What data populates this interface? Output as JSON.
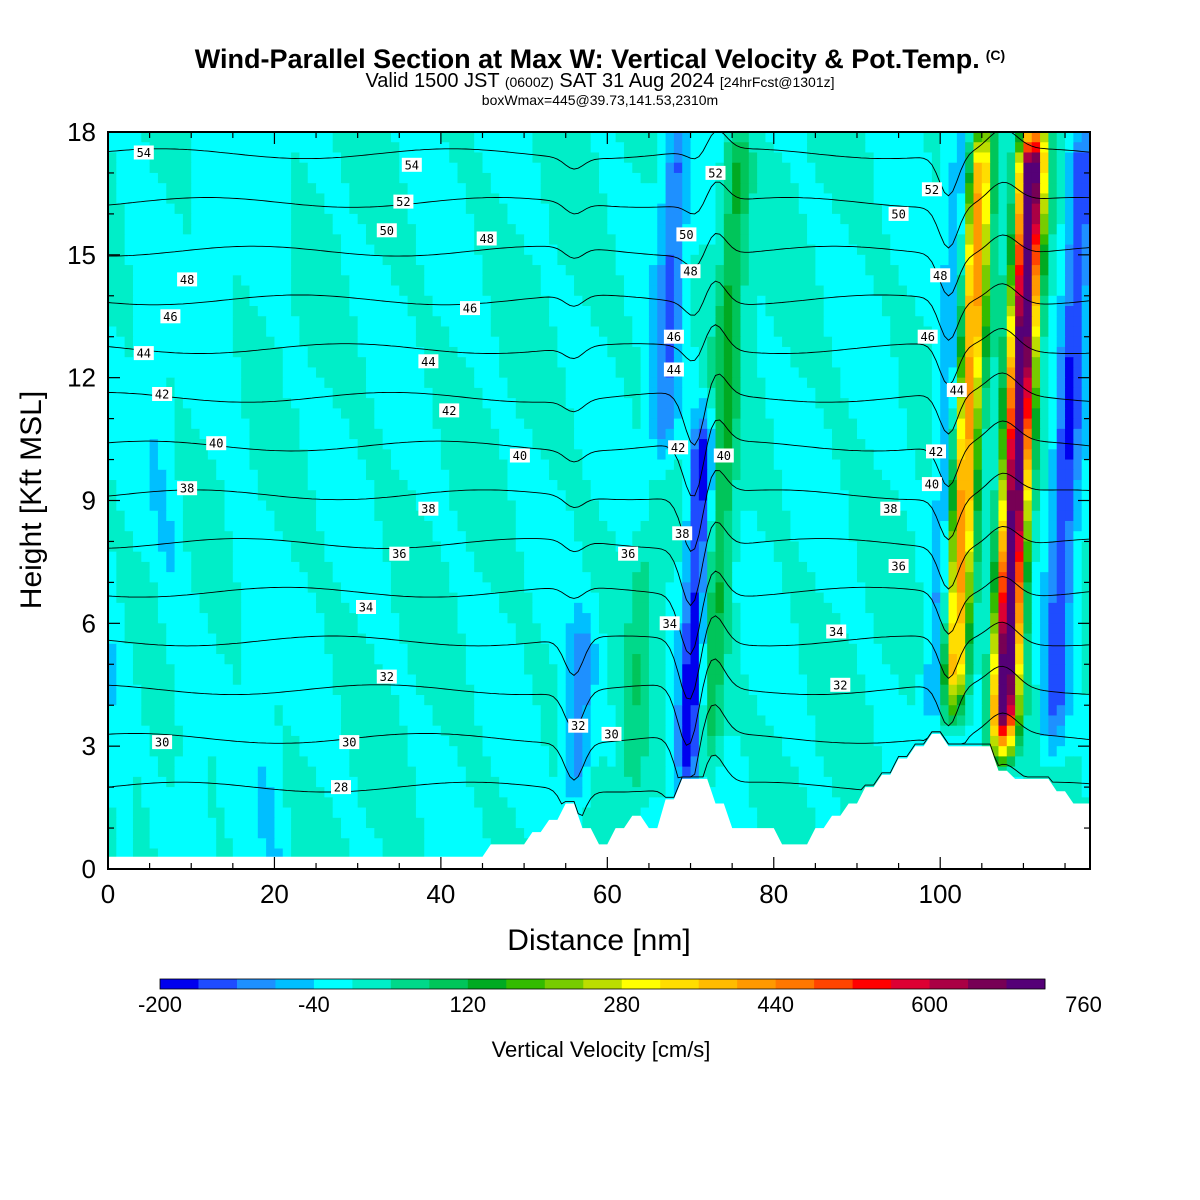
{
  "titles": {
    "main": "Wind-Parallel Section at Max W: Vertical Velocity & Pot.Temp.",
    "main_mark": "(C)",
    "valid_prefix": "Valid 1500 JST",
    "valid_zone": "(0600Z)",
    "valid_date": "SAT 31 Aug 2024",
    "valid_fcst": "[24hrFcst@1301z]",
    "boxline": "boxWmax=445@39.73,141.53,2310m"
  },
  "chart_data": {
    "type": "heatmap",
    "xlabel": "Distance [nm]",
    "ylabel": "Height [Kft MSL]",
    "xlim": [
      0,
      118
    ],
    "ylim": [
      0,
      18
    ],
    "xticks": [
      0,
      20,
      40,
      60,
      80,
      100
    ],
    "yticks": [
      0,
      3,
      6,
      9,
      12,
      15,
      18
    ],
    "colorbar": {
      "title": "Vertical Velocity [cm/s]",
      "min": -200,
      "step": 40,
      "tick_values": [
        -200,
        -40,
        120,
        280,
        440,
        600,
        760
      ],
      "colors": [
        "#0000ee",
        "#1f4cff",
        "#1e90ff",
        "#00bfff",
        "#00ffff",
        "#00eec8",
        "#00d98a",
        "#00c55a",
        "#00aa22",
        "#33bb00",
        "#77cc00",
        "#bbdd00",
        "#ffff00",
        "#ffdd00",
        "#ffbb00",
        "#ff9900",
        "#ff7700",
        "#ff4400",
        "#ff0000",
        "#dd0033",
        "#aa0044",
        "#770055",
        "#550077"
      ]
    },
    "terrain": [
      [
        0,
        0.3
      ],
      [
        45,
        0.3
      ],
      [
        46,
        0.6
      ],
      [
        50,
        0.6
      ],
      [
        51,
        0.9
      ],
      [
        52,
        0.9
      ],
      [
        53,
        1.2
      ],
      [
        54,
        1.2
      ],
      [
        55,
        1.6
      ],
      [
        56,
        1.6
      ],
      [
        57,
        1.0
      ],
      [
        58,
        1.0
      ],
      [
        59,
        0.6
      ],
      [
        60,
        0.6
      ],
      [
        61,
        1.0
      ],
      [
        62,
        1.0
      ],
      [
        63,
        1.3
      ],
      [
        64,
        1.3
      ],
      [
        65,
        1.0
      ],
      [
        66,
        1.0
      ],
      [
        67,
        1.7
      ],
      [
        68,
        1.7
      ],
      [
        69,
        2.2
      ],
      [
        72,
        2.2
      ],
      [
        73,
        1.6
      ],
      [
        74,
        1.6
      ],
      [
        75,
        1.0
      ],
      [
        80,
        1.0
      ],
      [
        81,
        0.6
      ],
      [
        84,
        0.6
      ],
      [
        85,
        1.0
      ],
      [
        86,
        1.0
      ],
      [
        87,
        1.3
      ],
      [
        88,
        1.3
      ],
      [
        89,
        1.6
      ],
      [
        90,
        1.6
      ],
      [
        91,
        2.0
      ],
      [
        92,
        2.0
      ],
      [
        93,
        2.3
      ],
      [
        94,
        2.3
      ],
      [
        95,
        2.7
      ],
      [
        96,
        2.7
      ],
      [
        97,
        3.0
      ],
      [
        98,
        3.0
      ],
      [
        99,
        3.3
      ],
      [
        100,
        3.3
      ],
      [
        101,
        3.0
      ],
      [
        106,
        3.0
      ],
      [
        107,
        2.4
      ],
      [
        108,
        2.4
      ],
      [
        109,
        2.2
      ],
      [
        113,
        2.2
      ],
      [
        114,
        1.9
      ],
      [
        115,
        1.9
      ],
      [
        116,
        1.6
      ],
      [
        118,
        1.6
      ]
    ],
    "w_bands": [
      {
        "x": 56,
        "w": -110,
        "ybot": 1.5,
        "ytop": 6.0
      },
      {
        "x": 69.5,
        "w": -190,
        "ybot": 2.0,
        "ytop": 11.0
      },
      {
        "x": 66.5,
        "w": -120,
        "ybot": 10.0,
        "ytop": 18.0
      },
      {
        "x": 72,
        "w": 130,
        "ybot": 2.5,
        "ytop": 18.0
      },
      {
        "x": 63,
        "w": 60,
        "ybot": 1.5,
        "ytop": 8.0
      },
      {
        "x": 99.5,
        "w": -120,
        "ybot": 3.5,
        "ytop": 18.0
      },
      {
        "x": 101.5,
        "w": 440,
        "ybot": 4.0,
        "ytop": 18.0
      },
      {
        "x": 107.5,
        "w": 760,
        "ybot": 3.0,
        "ytop": 18.0
      },
      {
        "x": 113.5,
        "w": -150,
        "ybot": 3.0,
        "ytop": 18.0
      }
    ],
    "theta_contours": [
      28,
      30,
      32,
      34,
      36,
      38,
      40,
      42,
      44,
      46,
      48,
      50,
      52,
      54
    ],
    "theta_labels": [
      {
        "x": 4.3,
        "y": 17.5,
        "v": "54"
      },
      {
        "x": 36.5,
        "y": 17.2,
        "v": "54"
      },
      {
        "x": 35.5,
        "y": 16.3,
        "v": "52"
      },
      {
        "x": 73,
        "y": 17.0,
        "v": "52"
      },
      {
        "x": 99,
        "y": 16.6,
        "v": "52"
      },
      {
        "x": 33.5,
        "y": 15.6,
        "v": "50"
      },
      {
        "x": 69.5,
        "y": 15.5,
        "v": "50"
      },
      {
        "x": 95,
        "y": 16.0,
        "v": "50"
      },
      {
        "x": 45.5,
        "y": 15.4,
        "v": "48"
      },
      {
        "x": 9.5,
        "y": 14.4,
        "v": "48"
      },
      {
        "x": 70,
        "y": 14.6,
        "v": "48"
      },
      {
        "x": 100,
        "y": 14.5,
        "v": "48"
      },
      {
        "x": 7.5,
        "y": 13.5,
        "v": "46"
      },
      {
        "x": 43.5,
        "y": 13.7,
        "v": "46"
      },
      {
        "x": 68,
        "y": 13.0,
        "v": "46"
      },
      {
        "x": 98.5,
        "y": 13.0,
        "v": "46"
      },
      {
        "x": 4.3,
        "y": 12.6,
        "v": "44"
      },
      {
        "x": 38.5,
        "y": 12.4,
        "v": "44"
      },
      {
        "x": 68,
        "y": 12.2,
        "v": "44"
      },
      {
        "x": 102,
        "y": 11.7,
        "v": "44"
      },
      {
        "x": 6.5,
        "y": 11.6,
        "v": "42"
      },
      {
        "x": 41,
        "y": 11.2,
        "v": "42"
      },
      {
        "x": 68.5,
        "y": 10.3,
        "v": "42"
      },
      {
        "x": 99.5,
        "y": 10.2,
        "v": "42"
      },
      {
        "x": 13,
        "y": 10.4,
        "v": "40"
      },
      {
        "x": 49.5,
        "y": 10.1,
        "v": "40"
      },
      {
        "x": 74,
        "y": 10.1,
        "v": "40"
      },
      {
        "x": 99,
        "y": 9.4,
        "v": "40"
      },
      {
        "x": 9.5,
        "y": 9.3,
        "v": "38"
      },
      {
        "x": 38.5,
        "y": 8.8,
        "v": "38"
      },
      {
        "x": 69,
        "y": 8.2,
        "v": "38"
      },
      {
        "x": 94,
        "y": 8.8,
        "v": "38"
      },
      {
        "x": 35,
        "y": 7.7,
        "v": "36"
      },
      {
        "x": 62.5,
        "y": 7.7,
        "v": "36"
      },
      {
        "x": 95,
        "y": 7.4,
        "v": "36"
      },
      {
        "x": 31,
        "y": 6.4,
        "v": "34"
      },
      {
        "x": 67.5,
        "y": 6.0,
        "v": "34"
      },
      {
        "x": 87.5,
        "y": 5.8,
        "v": "34"
      },
      {
        "x": 33.5,
        "y": 4.7,
        "v": "32"
      },
      {
        "x": 56.5,
        "y": 3.5,
        "v": "32"
      },
      {
        "x": 88,
        "y": 4.5,
        "v": "32"
      },
      {
        "x": 6.5,
        "y": 3.1,
        "v": "30"
      },
      {
        "x": 29,
        "y": 3.1,
        "v": "30"
      },
      {
        "x": 60.5,
        "y": 3.3,
        "v": "30"
      },
      {
        "x": 28,
        "y": 2.0,
        "v": "28"
      }
    ]
  }
}
